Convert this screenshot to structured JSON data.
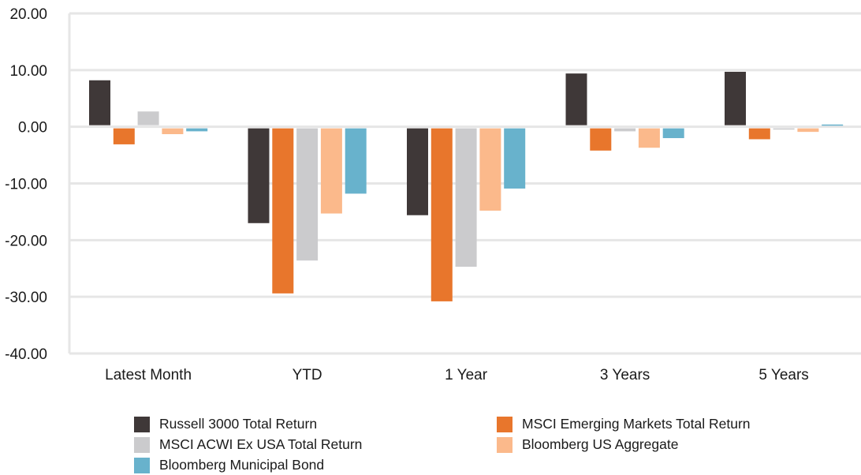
{
  "chart_data": {
    "type": "bar",
    "categories": [
      "Latest Month",
      "YTD",
      "1 Year",
      "3 Years",
      "5 Years"
    ],
    "series": [
      {
        "name": "Russell 3000 Total Return",
        "color": "#3f3838",
        "values": [
          8.2,
          -17.0,
          -15.6,
          9.4,
          9.7
        ]
      },
      {
        "name": "MSCI Emerging Markets Total Return",
        "color": "#e8762c",
        "values": [
          -3.1,
          -29.4,
          -30.8,
          -4.2,
          -2.2
        ]
      },
      {
        "name": "MSCI ACWI Ex USA Total Return",
        "color": "#cbcbcd",
        "values": [
          2.7,
          -23.6,
          -24.7,
          -0.8,
          -0.5
        ]
      },
      {
        "name": "Bloomberg US Aggregate",
        "color": "#fbb98b",
        "values": [
          -1.3,
          -15.3,
          -14.8,
          -3.7,
          -0.9
        ]
      },
      {
        "name": "Bloomberg Municipal Bond",
        "color": "#68b2cc",
        "values": [
          -0.8,
          -11.8,
          -10.9,
          -2.0,
          0.4
        ]
      }
    ],
    "yticks": [
      "20.00",
      "10.00",
      "0.00",
      "-10.00",
      "-20.00",
      "-30.00",
      "-40.00"
    ],
    "ylim": [
      -40,
      20
    ],
    "grid": true,
    "legend_position": "bottom"
  }
}
